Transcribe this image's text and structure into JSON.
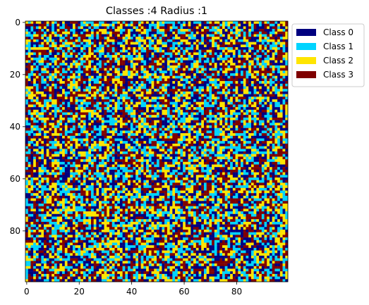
{
  "chart_data": {
    "type": "heatmap",
    "title": "Classes :4 Radius :1",
    "xlabel": "",
    "ylabel": "",
    "grid_size": [
      100,
      100
    ],
    "xlim": [
      0,
      99
    ],
    "ylim": [
      99,
      0
    ],
    "x_ticks": [
      0,
      20,
      40,
      60,
      80
    ],
    "y_ticks": [
      0,
      20,
      40,
      60,
      80
    ],
    "x_tick_labels": [
      "0",
      "20",
      "40",
      "60",
      "80"
    ],
    "y_tick_labels": [
      "0",
      "20",
      "40",
      "60",
      "80"
    ],
    "grid": false,
    "legend_position": "outside-top-right",
    "classes": [
      {
        "name": "Class 0",
        "value": 0,
        "color": "#00007f"
      },
      {
        "name": "Class 1",
        "value": 1,
        "color": "#00d4ff"
      },
      {
        "name": "Class 2",
        "value": 2,
        "color": "#ffe500"
      },
      {
        "name": "Class 3",
        "value": 3,
        "color": "#7f0000"
      }
    ]
  }
}
